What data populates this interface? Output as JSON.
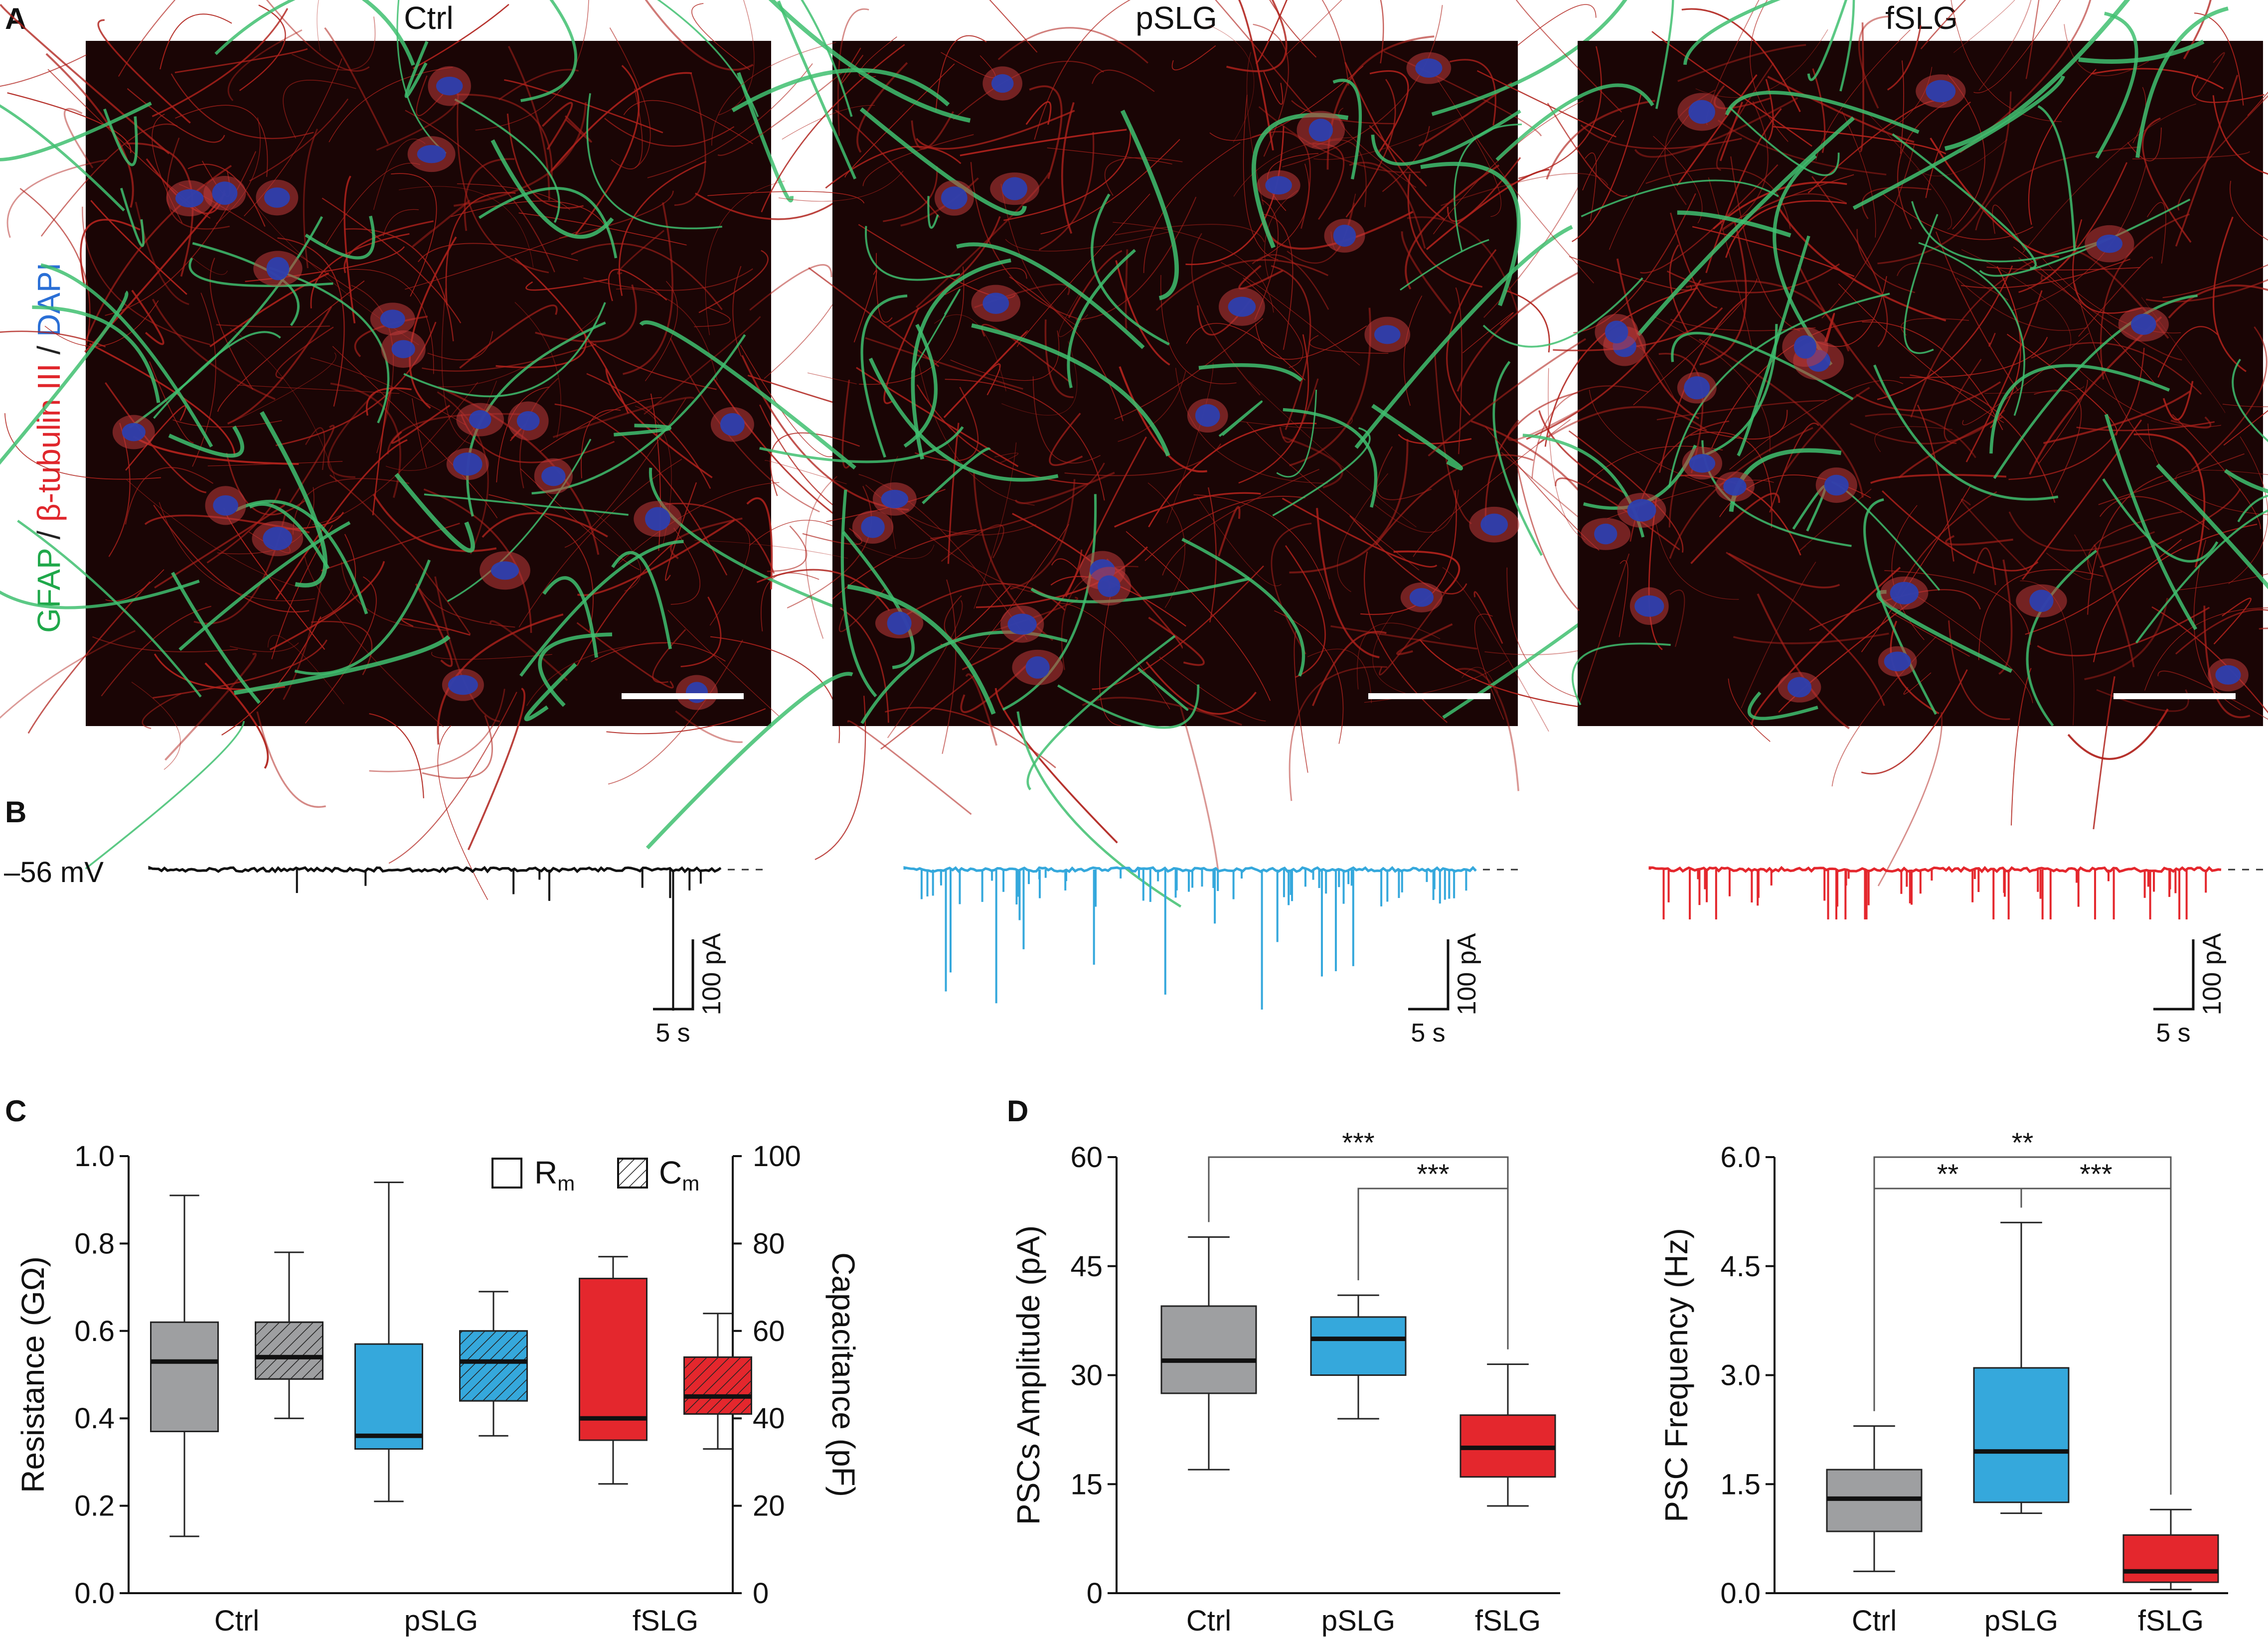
{
  "panels": {
    "a": "A",
    "b": "B",
    "c": "C",
    "d": "D"
  },
  "micrographs": {
    "conditions": [
      "Ctrl",
      "pSLG",
      "fSLG"
    ],
    "stain_labels": [
      {
        "text": "GFAP",
        "color": "#1fa84a"
      },
      {
        "text": " / ",
        "color": "#222222"
      },
      {
        "text": "β-tubulin III",
        "color": "#e0262c"
      },
      {
        "text": " / ",
        "color": "#222222"
      },
      {
        "text": "DAPI",
        "color": "#2a6fd6"
      }
    ],
    "colors": {
      "background": "#1a0505",
      "neurite": "#b0221c",
      "astro": "#3fc070",
      "nucleus": "#2d3fae"
    }
  },
  "traces": {
    "holding_label": "–56 mV",
    "scalebar_current": "100 pA",
    "scalebar_time": "5 s",
    "series": [
      {
        "name": "Ctrl",
        "color": "#111111",
        "events": 10
      },
      {
        "name": "pSLG",
        "color": "#35a8dc",
        "events": 70
      },
      {
        "name": "fSLG",
        "color": "#e4272d",
        "events": 55
      }
    ]
  },
  "chart_data": [
    {
      "type": "box",
      "categories": [
        "Ctrl",
        "pSLG",
        "fSLG"
      ],
      "ylabel": "Resistance (GΩ)",
      "ylim": [
        0,
        1.0
      ],
      "yticks": [
        "0.0",
        "0.2",
        "0.4",
        "0.6",
        "0.8",
        "1.0"
      ],
      "y2label": "Capacitance (pF)",
      "y2lim": [
        0,
        100
      ],
      "y2ticks": [
        "0",
        "20",
        "40",
        "60",
        "80",
        "100"
      ],
      "legend": [
        {
          "label": "R",
          "sub": "m",
          "fill": "open"
        },
        {
          "label": "C",
          "sub": "m",
          "fill": "hatched"
        }
      ],
      "legend_placement": "top-right",
      "colors": {
        "Ctrl": "#9e9fa1",
        "pSLG": "#35a8dc",
        "fSLG": "#e4272d"
      },
      "series": [
        {
          "name": "Rm",
          "axis": "left",
          "boxes": [
            {
              "min": 0.13,
              "q1": 0.37,
              "median": 0.53,
              "q3": 0.62,
              "max": 0.91
            },
            {
              "min": 0.21,
              "q1": 0.33,
              "median": 0.36,
              "q3": 0.57,
              "max": 0.94
            },
            {
              "min": 0.25,
              "q1": 0.35,
              "median": 0.4,
              "q3": 0.72,
              "max": 0.77
            }
          ]
        },
        {
          "name": "Cm",
          "axis": "right",
          "boxes": [
            {
              "min": 40,
              "q1": 49,
              "median": 54,
              "q3": 62,
              "max": 78
            },
            {
              "min": 36,
              "q1": 44,
              "median": 53,
              "q3": 60,
              "max": 69
            },
            {
              "min": 33,
              "q1": 41,
              "median": 45,
              "q3": 54,
              "max": 64
            }
          ]
        }
      ]
    },
    {
      "type": "box",
      "categories": [
        "Ctrl",
        "pSLG",
        "fSLG"
      ],
      "ylabel": "PSCs Amplitude (pA)",
      "ylim": [
        0,
        60
      ],
      "yticks": [
        "0",
        "15",
        "30",
        "45",
        "60"
      ],
      "colors": {
        "Ctrl": "#9e9fa1",
        "pSLG": "#35a8dc",
        "fSLG": "#e4272d"
      },
      "boxes": [
        {
          "min": 17,
          "q1": 27.5,
          "median": 32,
          "q3": 39.5,
          "max": 49
        },
        {
          "min": 24,
          "q1": 30,
          "median": 35,
          "q3": 38,
          "max": 41
        },
        {
          "min": 12,
          "q1": 16,
          "median": 20,
          "q3": 24.5,
          "max": 31.5
        }
      ],
      "significance": [
        {
          "from": 0,
          "to": 2,
          "label": "***"
        },
        {
          "from": 1,
          "to": 2,
          "label": "***"
        }
      ]
    },
    {
      "type": "box",
      "categories": [
        "Ctrl",
        "pSLG",
        "fSLG"
      ],
      "ylabel": "PSC Frequency (Hz)",
      "ylim": [
        0,
        6.0
      ],
      "yticks": [
        "0.0",
        "1.5",
        "3.0",
        "4.5",
        "6.0"
      ],
      "colors": {
        "Ctrl": "#9e9fa1",
        "pSLG": "#35a8dc",
        "fSLG": "#e4272d"
      },
      "boxes": [
        {
          "min": 0.3,
          "q1": 0.85,
          "median": 1.3,
          "q3": 1.7,
          "max": 2.3
        },
        {
          "min": 1.1,
          "q1": 1.25,
          "median": 1.95,
          "q3": 3.1,
          "max": 5.1
        },
        {
          "min": 0.05,
          "q1": 0.15,
          "median": 0.3,
          "q3": 0.8,
          "max": 1.15
        }
      ],
      "significance": [
        {
          "from": 0,
          "to": 2,
          "label": "**"
        },
        {
          "from": 0,
          "to": 1,
          "label": "**"
        },
        {
          "from": 1,
          "to": 2,
          "label": "***"
        }
      ]
    }
  ]
}
